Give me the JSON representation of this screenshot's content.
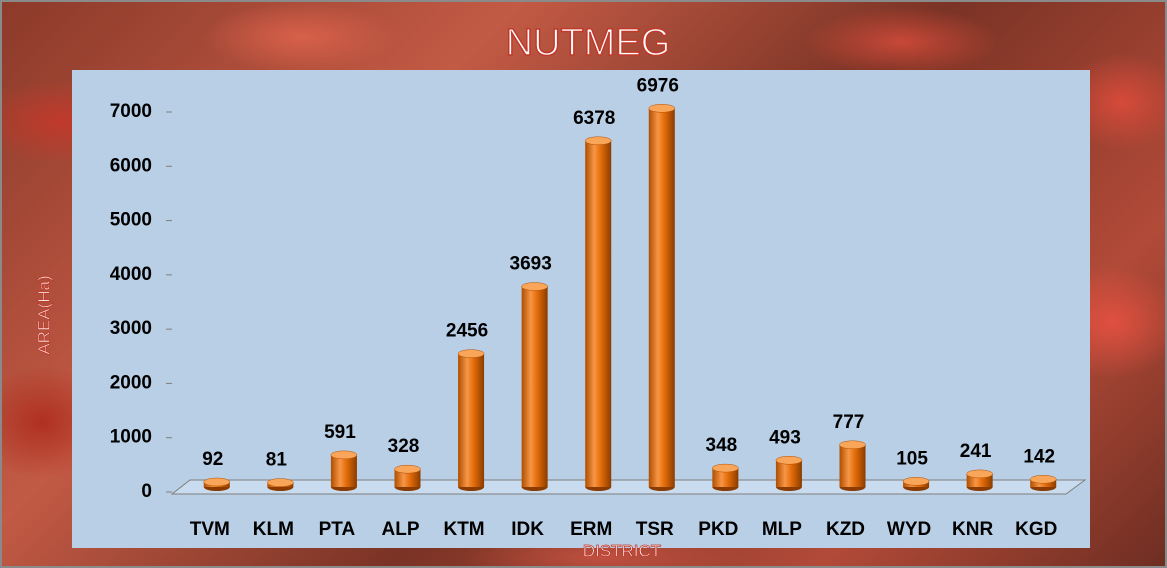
{
  "chart_data": {
    "type": "bar",
    "title": "NUTMEG",
    "x_label": "DISTRICT",
    "y_label": "AREA(Ha)",
    "categories": [
      "TVM",
      "KLM",
      "PTA",
      "ALP",
      "KTM",
      "IDK",
      "ERM",
      "TSR",
      "PKD",
      "MLP",
      "KZD",
      "WYD",
      "KNR",
      "KGD"
    ],
    "values": [
      92,
      81,
      591,
      328,
      2456,
      3693,
      6378,
      6976,
      348,
      493,
      777,
      105,
      241,
      142
    ],
    "color": "#e36c09",
    "ylim": [
      0,
      7000
    ],
    "yticks": [
      0,
      1000,
      2000,
      3000,
      4000,
      5000,
      6000,
      7000
    ]
  }
}
